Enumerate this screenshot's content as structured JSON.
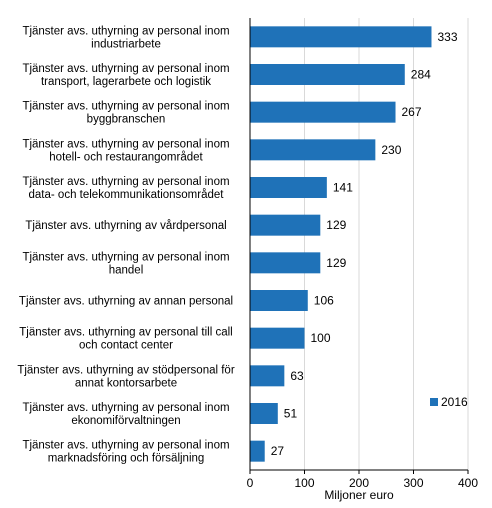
{
  "chart_data": {
    "type": "bar",
    "orientation": "horizontal",
    "categories": [
      [
        "Tjänster avs. uthyrning av personal inom",
        "industriarbete"
      ],
      [
        "Tjänster avs. uthyrning av personal inom",
        "transport, lagerarbete och logistik"
      ],
      [
        "Tjänster avs. uthyrning av personal inom",
        "byggbranschen"
      ],
      [
        "Tjänster avs. uthyrning av personal inom",
        "hotell- och restaurangområdet"
      ],
      [
        "Tjänster avs. uthyrning av personal inom",
        "data- och telekommunikationsområdet"
      ],
      [
        "Tjänster avs. uthyrning av vårdpersonal"
      ],
      [
        "Tjänster avs. uthyrning av personal inom",
        "handel"
      ],
      [
        "Tjänster avs. uthyrning av annan personal"
      ],
      [
        "Tjänster avs. uthyrning av personal till call",
        "och contact center"
      ],
      [
        "Tjänster avs. uthyrning av stödpersonal för",
        "annat kontorsarbete"
      ],
      [
        "Tjänster avs. uthyrning av personal inom",
        "ekonomiförvaltningen"
      ],
      [
        "Tjänster avs. uthyrning av personal inom",
        "marknadsföring och försäljning"
      ]
    ],
    "series": [
      {
        "name": "2016",
        "values": [
          333,
          284,
          267,
          230,
          141,
          129,
          129,
          106,
          100,
          63,
          51,
          27
        ]
      }
    ],
    "xlabel": "Miljoner euro",
    "xlim": [
      0,
      400
    ],
    "xticks": [
      0,
      100,
      200,
      300,
      400
    ],
    "grid": "vertical",
    "legend": "bottom-right",
    "colors": {
      "bar": "#1f72b8",
      "grid": "#d9d9d9",
      "axis": "#000000"
    }
  }
}
